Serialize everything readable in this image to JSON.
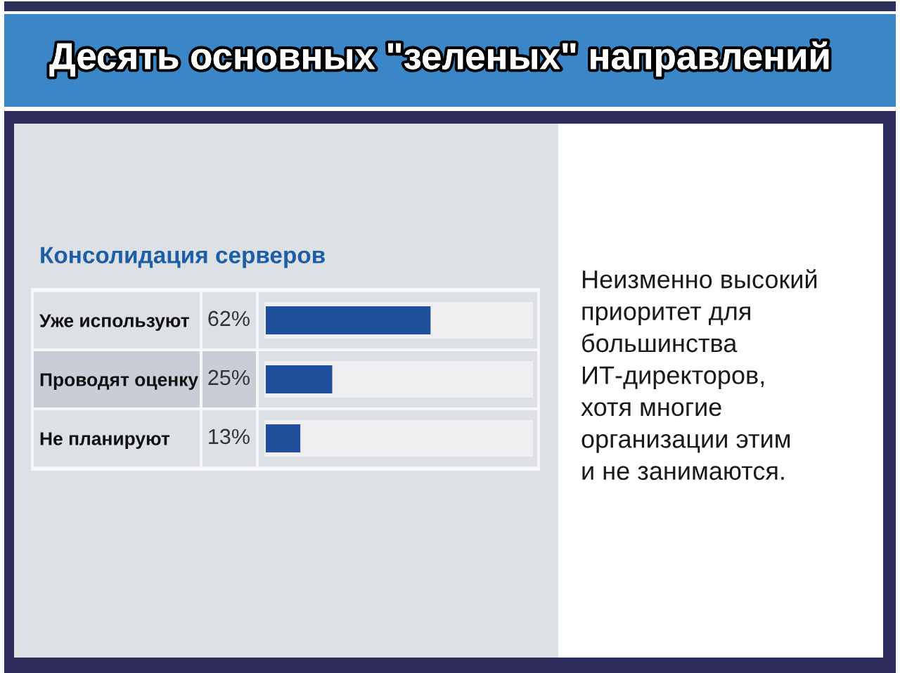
{
  "chart_data": {
    "type": "bar",
    "orientation": "horizontal",
    "title": "Десять основных \"зеленых\" направлений",
    "subtitle": "Консолидация серверов",
    "categories": [
      "Уже используют",
      "Проводят оценку",
      "Не планируют"
    ],
    "values": [
      62,
      25,
      13
    ],
    "value_labels": [
      "62%",
      "25%",
      "13%"
    ],
    "color": "#1f4f9a",
    "xlim": [
      0,
      100
    ],
    "tick_labels": "y",
    "annotations": [
      "Неизменно высокий\nприоритет для\nбольшинства\nИТ-директоров,\nхотя многие\nорганизации этим\nи не занимаются."
    ]
  }
}
